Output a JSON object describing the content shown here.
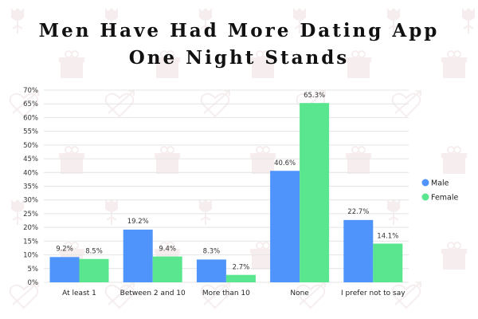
{
  "chart_data": {
    "type": "bar",
    "title": "Men Have Had More Dating App One Night Stands",
    "title_lines": [
      "Men Have Had More Dating App",
      "One Night Stands"
    ],
    "xlabel": "",
    "ylabel": "",
    "ylim": [
      0,
      70
    ],
    "ytick_step": 5,
    "ytick_format": "{v}%",
    "grid": true,
    "legend_position": "right",
    "categories": [
      "At least 1",
      "Between 2 and 10",
      "More than 10",
      "None",
      "I prefer not to say"
    ],
    "series": [
      {
        "name": "Male",
        "color": "#4f94fa",
        "values": [
          9.2,
          19.2,
          8.3,
          40.6,
          22.7
        ],
        "labels": [
          "9.2%",
          "19.2%",
          "8.3%",
          "40.6%",
          "22.7%"
        ]
      },
      {
        "name": "Female",
        "color": "#5ae68e",
        "values": [
          8.5,
          9.4,
          2.7,
          65.3,
          14.1
        ],
        "labels": [
          "8.5%",
          "9.4%",
          "2.7%",
          "65.3%",
          "14.1%"
        ]
      }
    ]
  },
  "background": {
    "pattern_icons": [
      "rose-icon",
      "gift-icon",
      "heart-arrow-icon"
    ],
    "pattern_color": "#f6eeee"
  }
}
